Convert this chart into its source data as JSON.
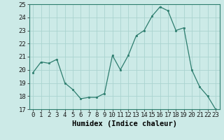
{
  "x": [
    0,
    1,
    2,
    3,
    4,
    5,
    6,
    7,
    8,
    9,
    10,
    11,
    12,
    13,
    14,
    15,
    16,
    17,
    18,
    19,
    20,
    21,
    22,
    23
  ],
  "y": [
    19.8,
    20.6,
    20.5,
    20.8,
    19.0,
    18.5,
    17.8,
    17.9,
    17.9,
    18.2,
    21.1,
    20.0,
    21.1,
    22.6,
    23.0,
    24.1,
    24.8,
    24.5,
    23.0,
    23.2,
    20.0,
    18.7,
    18.0,
    17.0
  ],
  "line_color": "#2d7d6e",
  "marker_color": "#2d7d6e",
  "bg_color": "#cceae7",
  "grid_color": "#aad4d0",
  "xlabel": "Humidex (Indice chaleur)",
  "ylim": [
    17,
    25
  ],
  "xlim": [
    -0.5,
    23.5
  ],
  "yticks": [
    17,
    18,
    19,
    20,
    21,
    22,
    23,
    24,
    25
  ],
  "xticks": [
    0,
    1,
    2,
    3,
    4,
    5,
    6,
    7,
    8,
    9,
    10,
    11,
    12,
    13,
    14,
    15,
    16,
    17,
    18,
    19,
    20,
    21,
    22,
    23
  ],
  "tick_label_fontsize": 6.5,
  "xlabel_fontsize": 7.5
}
